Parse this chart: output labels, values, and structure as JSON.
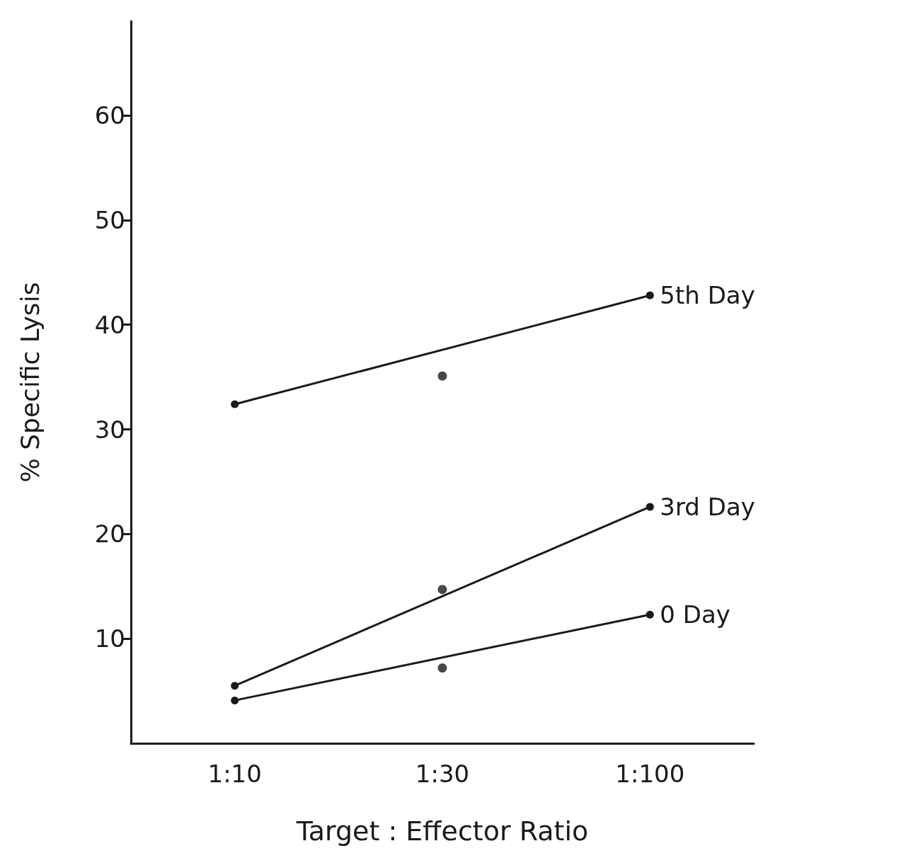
{
  "chart_data": {
    "type": "line",
    "xlabel": "Target : Effector Ratio",
    "ylabel": "% Specific Lysis",
    "categories": [
      "1:10",
      "1:30",
      "1:100"
    ],
    "ylim": [
      0,
      69
    ],
    "yticks": [
      10,
      20,
      30,
      40,
      50,
      60
    ],
    "grid": false,
    "legend": false,
    "marker": "circle",
    "line_style": "solid",
    "series": [
      {
        "name": "5th Day",
        "x": [
          "1:10",
          "1:100"
        ],
        "values": [
          32.4,
          42.8
        ],
        "color": "#1a1a1a"
      },
      {
        "type": "scatter",
        "values": [
          null,
          35.1,
          null
        ],
        "color": "#1a1a1a"
      },
      {
        "name": "3rd Day",
        "x": [
          "1:10",
          "1:100"
        ],
        "values": [
          5.5,
          22.6
        ],
        "color": "#1a1a1a"
      },
      {
        "type": "scatter",
        "values": [
          null,
          14.7,
          null
        ],
        "color": "#1a1a1a"
      },
      {
        "name": "0 Day",
        "x": [
          "1:10",
          "1:100"
        ],
        "values": [
          4.1,
          12.3
        ],
        "color": "#1a1a1a"
      },
      {
        "type": "scatter",
        "values": [
          null,
          7.2,
          null
        ],
        "color": "#1a1a1a"
      }
    ]
  }
}
